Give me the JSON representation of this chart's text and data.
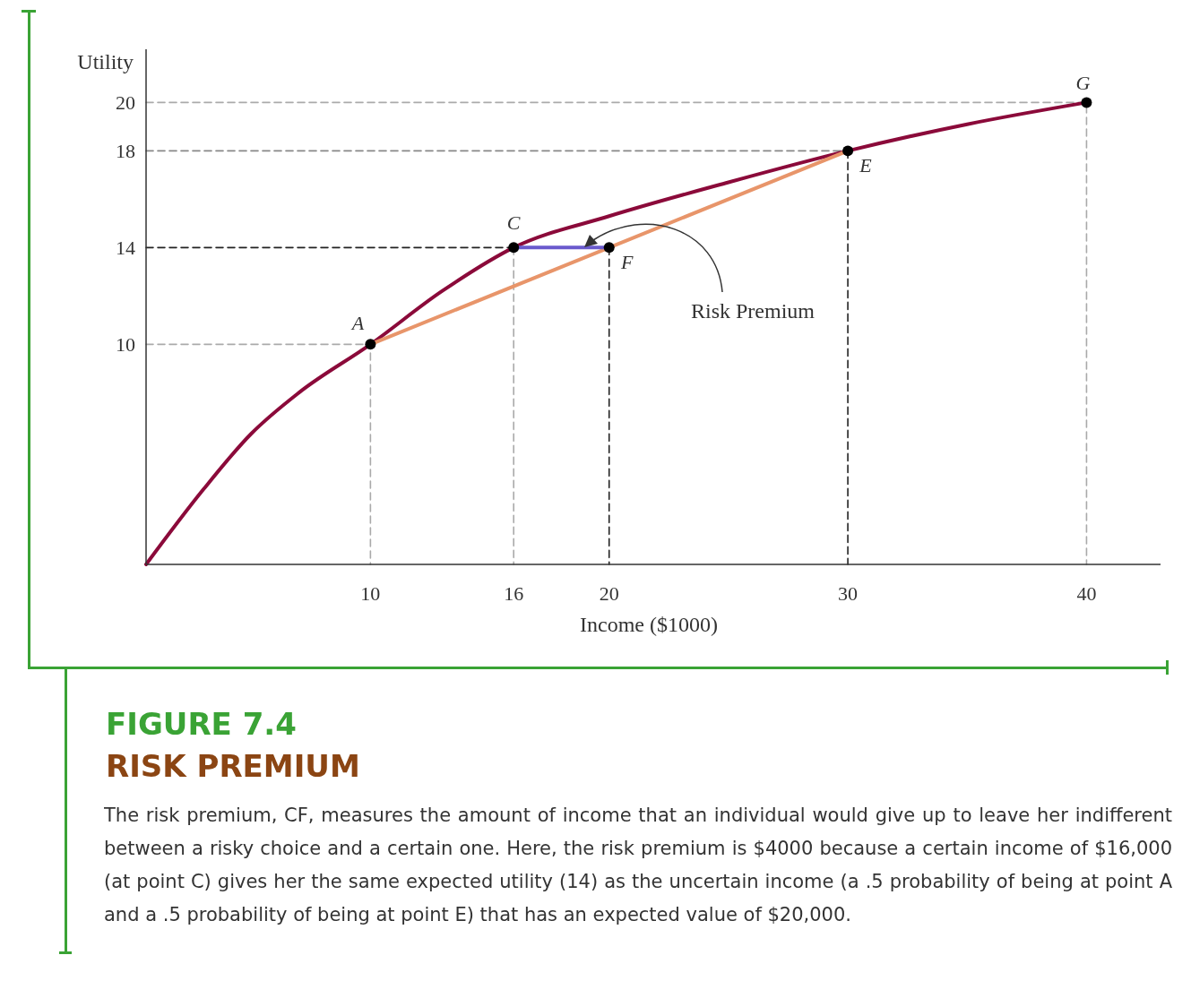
{
  "chart_data": {
    "type": "line",
    "title": "FIGURE 7.4",
    "subtitle": "RISK PREMIUM",
    "xlabel": "Income ($1000)",
    "ylabel": "Utility",
    "xlim": [
      0.6,
      43.1
    ],
    "ylim": [
      0.9,
      22.2
    ],
    "xticks": [
      10,
      16,
      20,
      30,
      40
    ],
    "yticks": [
      10,
      14,
      18,
      20
    ],
    "grid": false,
    "series": [
      {
        "color": "#aaaaaa",
        "line_style": "dashed",
        "x": [
          0.6,
          40,
          40
        ],
        "values": [
          20,
          20,
          0.9
        ]
      },
      {
        "type": "line",
        "color": "#888888",
        "line_style": "dashed",
        "x": [
          0.6,
          30
        ],
        "values": [
          18,
          18
        ]
      },
      {
        "type": "line",
        "color": "#222222",
        "line_style": "dashed",
        "x": [
          30,
          30
        ],
        "values": [
          18,
          0.9
        ]
      },
      {
        "type": "line",
        "color": "#222222",
        "line_style": "dashed",
        "x": [
          0.6,
          16
        ],
        "values": [
          14,
          14
        ]
      },
      {
        "type": "line",
        "color": "#aaaaaa",
        "line_style": "dashed",
        "x": [
          16,
          16
        ],
        "values": [
          14,
          0.9
        ]
      },
      {
        "type": "line",
        "color": "#222222",
        "line_style": "dashed",
        "x": [
          20,
          20
        ],
        "values": [
          14,
          0.9
        ]
      },
      {
        "type": "line",
        "color": "#aaaaaa",
        "line_style": "dashed",
        "x": [
          0.6,
          10,
          10
        ],
        "values": [
          10,
          10,
          0.9
        ]
      },
      {
        "color": "#8b0a3a",
        "line_style": "solid",
        "x": [
          0.6,
          3,
          5,
          7,
          10,
          13,
          16,
          20,
          25,
          30,
          35,
          40
        ],
        "values": [
          0.9,
          4,
          6.3,
          8,
          10,
          12.2,
          14,
          15.3,
          16.7,
          18,
          19.1,
          20
        ]
      },
      {
        "type": "line",
        "color": "#e8956a",
        "line_style": "solid",
        "x": [
          10,
          30
        ],
        "values": [
          10,
          18
        ]
      },
      {
        "type": "line",
        "color": "#6a5acd",
        "line_style": "solid",
        "x": [
          16,
          20
        ],
        "values": [
          14,
          14
        ]
      },
      {
        "type": "scatter",
        "color": "#000000",
        "marker": "circle",
        "x": [
          10,
          16,
          20,
          30,
          40
        ],
        "values": [
          10,
          14,
          14,
          18,
          20
        ]
      }
    ],
    "annotations": [
      {
        "text": "A",
        "x": 10,
        "y": 10
      },
      {
        "text": "C",
        "x": 16,
        "y": 14
      },
      {
        "text": "F",
        "x": 20,
        "y": 14
      },
      {
        "text": "E",
        "x": 30,
        "y": 18
      },
      {
        "text": "G",
        "x": 40,
        "y": 20
      },
      "Risk Premium",
      "The risk premium, CF, measures the amount of income that an individual would give up to leave her indifferent between a risky choice and a certain one. Here, the risk premium is $4000 because a certain income of $16,000 (at point C) gives her the same expected utility (14) as the uncertain income (a .5 probability of being at point A and a .5 probability of being at point E) that has an expected value of $20,000."
    ]
  }
}
